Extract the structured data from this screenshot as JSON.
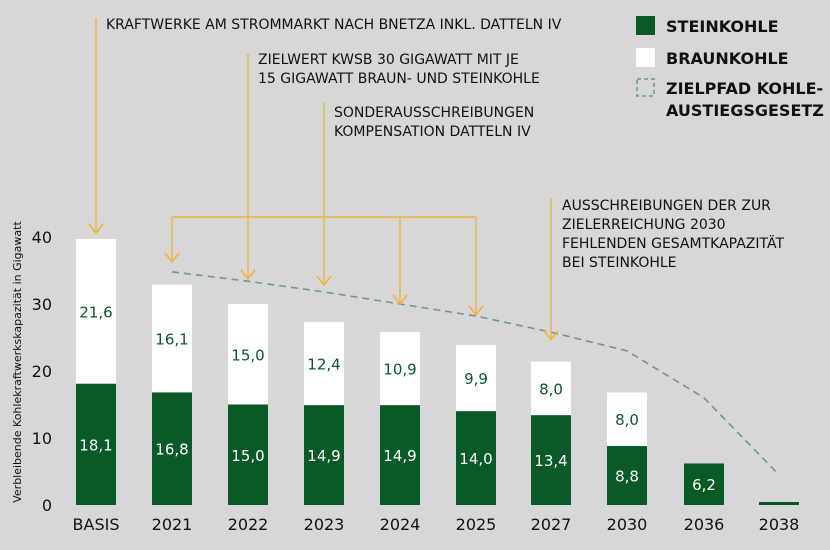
{
  "chart_data": {
    "type": "bar",
    "stacked": true,
    "categories": [
      "BASIS",
      "2021",
      "2022",
      "2023",
      "2024",
      "2025",
      "2027",
      "2030",
      "2036",
      "2038"
    ],
    "series": [
      {
        "name": "STEINKOHLE",
        "color": "#0a5a28",
        "values": [
          18.1,
          16.8,
          15.0,
          14.9,
          14.9,
          14.0,
          13.4,
          8.8,
          6.2,
          0.4
        ],
        "labels": [
          "18,1",
          "16,8",
          "15,0",
          "14,9",
          "14,9",
          "14,0",
          "13,4",
          "8,8",
          "6,2",
          ""
        ]
      },
      {
        "name": "BRAUNKOHLE",
        "color": "#ffffff",
        "values": [
          21.6,
          16.1,
          15.0,
          12.4,
          10.9,
          9.9,
          8.0,
          8.0,
          0,
          0
        ],
        "labels": [
          "21,6",
          "16,1",
          "15,0",
          "12,4",
          "10,9",
          "9,9",
          "8,0",
          "8,0",
          "",
          ""
        ]
      }
    ],
    "target_path": {
      "name": "ZIELPFAD KOHLE-AUSTIEGSGESETZ",
      "color": "#6f9a80",
      "x": [
        "2021",
        "2022",
        "2023",
        "2024",
        "2025",
        "2027",
        "2030",
        "2036",
        "2038"
      ],
      "values": [
        34.8,
        33.4,
        31.8,
        30.0,
        28.2,
        25.8,
        23.0,
        16.0,
        4.5
      ]
    },
    "ylabel": "Verbleibende Kohlekraftwerkskapazität in Gigawatt",
    "yticks": [
      "0",
      "10",
      "20",
      "30",
      "40"
    ],
    "ylim": [
      0,
      40
    ],
    "grid": false,
    "legend_position": "top-right",
    "legend": [
      {
        "label": "STEINKOHLE",
        "swatch": "solid",
        "color": "#0a5a28"
      },
      {
        "label": "BRAUNKOHLE",
        "swatch": "solid",
        "color": "#ffffff"
      },
      {
        "label": "ZIELPFAD KOHLE-",
        "label2": "AUSTIEGSGESETZ",
        "swatch": "dashed",
        "color": "#6f9a80"
      }
    ],
    "annotations": [
      {
        "lines": [
          "KRAFTWERKE AM STROMMARKT NACH BNETZA INKL. DATTELN IV"
        ],
        "target": "BASIS"
      },
      {
        "lines": [
          "ZIELWERT KWSB 30 GIGAWATT MIT JE",
          "15 GIGAWATT BRAUN- UND STEINKOHLE"
        ],
        "target": "2022"
      },
      {
        "lines": [
          "SONDERAUSSCHREIBUNGEN",
          "KOMPENSATION DATTELN IV"
        ],
        "target": "2023"
      },
      {
        "lines": [
          "AUSSCHREIBUNGEN DER ZUR",
          "ZIELERREICHUNG 2030",
          "FEHLENDEN GESAMTKAPAZITÄT",
          "BEI STEINKOHLE"
        ],
        "target": "2027"
      }
    ],
    "bracket_targets": [
      "2021",
      "2024",
      "2025"
    ],
    "arrow_color": "#f0b43c"
  }
}
